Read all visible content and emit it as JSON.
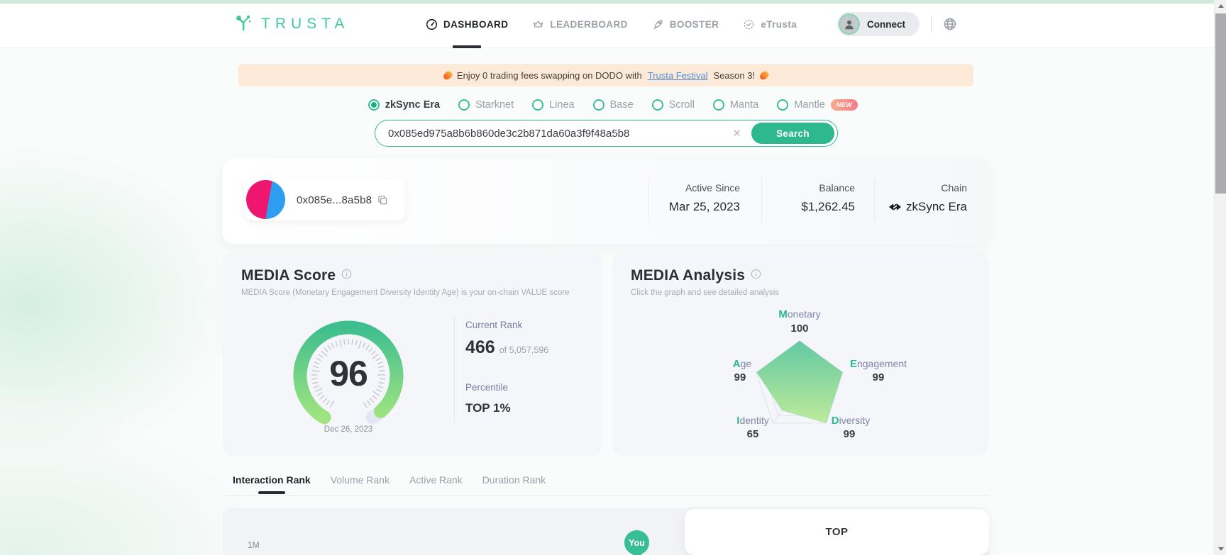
{
  "brand": {
    "wordmark": "TRUSTA"
  },
  "nav": {
    "items": [
      {
        "label": "DASHBOARD",
        "icon": "dashboard-gauge-icon",
        "active": true
      },
      {
        "label": "LEADERBOARD",
        "icon": "crown-icon",
        "active": false
      },
      {
        "label": "BOOSTER",
        "icon": "rocket-icon",
        "active": false
      },
      {
        "label": "eTrusta",
        "icon": "badge-icon",
        "active": false
      }
    ],
    "connect_label": "Connect"
  },
  "banner": {
    "text_before": "Enjoy 0 trading fees swapping on DODO with",
    "link_text": "Trusta Festival",
    "text_after": "Season 3!"
  },
  "chain_selector": {
    "options": [
      {
        "label": "zkSync Era",
        "selected": true
      },
      {
        "label": "Starknet",
        "selected": false
      },
      {
        "label": "Linea",
        "selected": false
      },
      {
        "label": "Base",
        "selected": false
      },
      {
        "label": "Scroll",
        "selected": false
      },
      {
        "label": "Manta",
        "selected": false
      },
      {
        "label": "Mantle",
        "selected": false,
        "badge": "NEW"
      }
    ]
  },
  "search": {
    "value": "0x085ed975a8b6b860de3c2b871da60a3f9f48a5b8",
    "button_label": "Search"
  },
  "profile": {
    "address_short": "0x085e...8a5b8",
    "stats": [
      {
        "label": "Active Since",
        "value": "Mar 25, 2023"
      },
      {
        "label": "Balance",
        "value": "$1,262.45"
      },
      {
        "label": "Chain",
        "value": "zkSync Era",
        "icon": "zksync-logo"
      }
    ]
  },
  "media_score": {
    "title": "MEDIA Score",
    "subtitle": "MEDIA Score (Monetary Engagement Diversity Identity Age) is your on-chain VALUE score",
    "current_rank_label": "Current Rank",
    "rank": "466",
    "rank_total": "of 5,057,596",
    "percentile_label": "Percentile",
    "percentile": "TOP 1%"
  },
  "media_analysis": {
    "title": "MEDIA Analysis",
    "subtitle": "Click the graph and see detailed analysis",
    "axes": [
      {
        "first": "M",
        "rest": "onetary"
      },
      {
        "first": "E",
        "rest": "ngagement"
      },
      {
        "first": "D",
        "rest": "iversity"
      },
      {
        "first": "I",
        "rest": "dentity"
      },
      {
        "first": "A",
        "rest": "ge"
      }
    ]
  },
  "chart_data": [
    {
      "type": "gauge",
      "title": "MEDIA Score",
      "value": 96,
      "min": 0,
      "max": 100,
      "date": "Dec 26, 2023",
      "arc_colors": [
        "#3fbe8f",
        "#9fe47f"
      ],
      "track_color": "#e2e7f4",
      "tick_color": "#c6cbd5"
    },
    {
      "type": "radar",
      "title": "MEDIA Analysis",
      "categories": [
        "Monetary",
        "Engagement",
        "Diversity",
        "Identity",
        "Age"
      ],
      "values": [
        100,
        99,
        99,
        65,
        99
      ],
      "max": 100,
      "fill_colors": [
        "#52c49a",
        "#b9ea90"
      ],
      "grid_color": "#dee2ed"
    }
  ],
  "tabs": [
    {
      "label": "Interaction Rank",
      "active": true
    },
    {
      "label": "Volume Rank",
      "active": false
    },
    {
      "label": "Active Rank",
      "active": false
    },
    {
      "label": "Duration Rank",
      "active": false
    }
  ],
  "rank_chart": {
    "axis_label": "1M",
    "you_marker": "You",
    "panel_title": "TOP"
  },
  "colors": {
    "brand_teal": "#2eb890",
    "banner_bg": "#fde9d8",
    "link_blue": "#4a90d9",
    "avatar_pink": "#ef1670",
    "avatar_blue": "#2e9ef0",
    "new_badge_gradient": [
      "#f9ab8d",
      "#f37b8c"
    ]
  }
}
